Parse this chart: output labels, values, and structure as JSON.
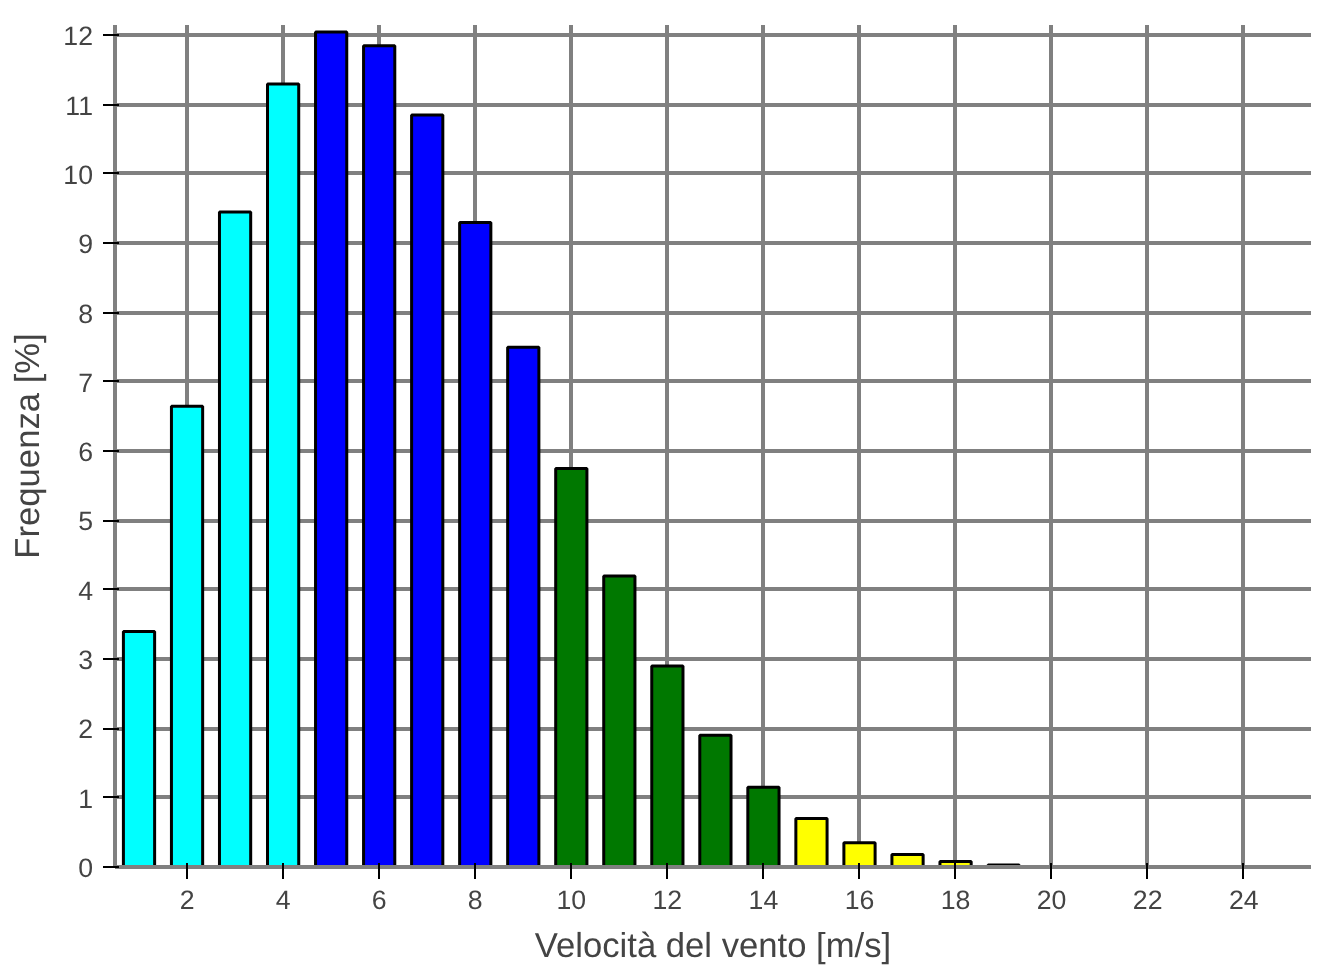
{
  "chart_data": {
    "type": "bar",
    "xlabel": "Velocità del vento [m/s]",
    "ylabel": "Frequenza [%]",
    "x": [
      1,
      2,
      3,
      4,
      5,
      6,
      7,
      8,
      9,
      10,
      11,
      12,
      13,
      14,
      15,
      16,
      17,
      18,
      19
    ],
    "values": [
      3.4,
      6.65,
      9.45,
      11.3,
      12.05,
      11.85,
      10.85,
      9.3,
      7.5,
      5.75,
      4.2,
      2.9,
      1.9,
      1.15,
      0.7,
      0.35,
      0.18,
      0.08,
      0.03
    ],
    "colors": [
      "#00ffff",
      "#00ffff",
      "#00ffff",
      "#00ffff",
      "#0000ff",
      "#0000ff",
      "#0000ff",
      "#0000ff",
      "#0000ff",
      "#007800",
      "#007800",
      "#007800",
      "#007800",
      "#007800",
      "#ffff00",
      "#ffff00",
      "#ffff00",
      "#ffff00",
      "#ffff00"
    ],
    "xlim": [
      0.5,
      25.4
    ],
    "ylim": [
      0,
      12.15
    ],
    "xticks": [
      2,
      4,
      6,
      8,
      10,
      12,
      14,
      16,
      18,
      20,
      22,
      24
    ],
    "yticks": [
      0,
      1,
      2,
      3,
      4,
      5,
      6,
      7,
      8,
      9,
      10,
      11,
      12
    ],
    "grid": true
  }
}
